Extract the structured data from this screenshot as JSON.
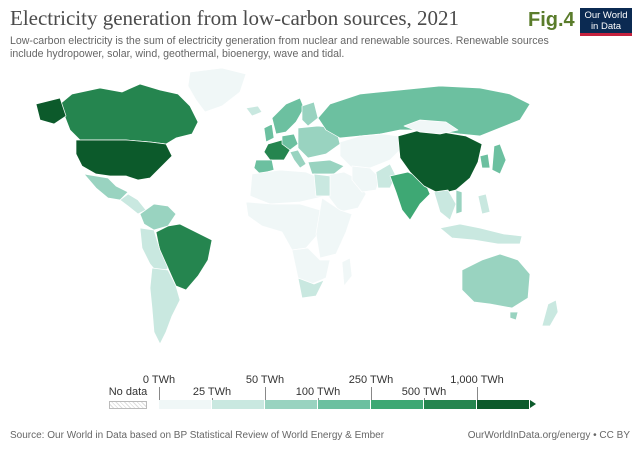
{
  "header": {
    "title": "Electricity generation from low-carbon sources, 2021",
    "subtitle": "Low-carbon electricity is the sum of electricity generation from nuclear and renewable sources. Renewable sources include hydropower, solar, wind, geothermal, bioenergy, wave and tidal.",
    "fig_label": "Fig.4",
    "logo_line1": "Our World",
    "logo_line2": "in Data"
  },
  "legend": {
    "no_data_label": "No data",
    "no_data_color": "#f5f5f5",
    "bins": [
      {
        "label": "0 TWh",
        "color": "#f0f7f7",
        "row": "top"
      },
      {
        "label": "25 TWh",
        "color": "#c9e8e0",
        "row": "bottom"
      },
      {
        "label": "50 TWh",
        "color": "#99d3c0",
        "row": "top"
      },
      {
        "label": "100 TWh",
        "color": "#6cc0a0",
        "row": "bottom"
      },
      {
        "label": "250 TWh",
        "color": "#3ea874",
        "row": "top"
      },
      {
        "label": "500 TWh",
        "color": "#25854f",
        "row": "bottom"
      },
      {
        "label": "1,000 TWh",
        "color": "#0c5a2b",
        "row": "top"
      }
    ],
    "arrow_color": "#0c5a2b"
  },
  "regions": [
    {
      "name": "Greenland",
      "color": "#f0f7f7"
    },
    {
      "name": "Canada",
      "color": "#25854f"
    },
    {
      "name": "United States",
      "color": "#0c5a2b"
    },
    {
      "name": "Mexico",
      "color": "#99d3c0"
    },
    {
      "name": "Central America",
      "color": "#c9e8e0"
    },
    {
      "name": "Colombia & Venezuela",
      "color": "#99d3c0"
    },
    {
      "name": "Brazil",
      "color": "#25854f"
    },
    {
      "name": "Peru & Bolivia",
      "color": "#c9e8e0"
    },
    {
      "name": "Argentina & Chile",
      "color": "#c9e8e0"
    },
    {
      "name": "Iceland",
      "color": "#c9e8e0"
    },
    {
      "name": "Norway & Sweden",
      "color": "#6cc0a0"
    },
    {
      "name": "Finland",
      "color": "#99d3c0"
    },
    {
      "name": "United Kingdom",
      "color": "#6cc0a0"
    },
    {
      "name": "France",
      "color": "#25854f"
    },
    {
      "name": "Spain",
      "color": "#6cc0a0"
    },
    {
      "name": "Germany",
      "color": "#6cc0a0"
    },
    {
      "name": "Italy",
      "color": "#99d3c0"
    },
    {
      "name": "Eastern Europe",
      "color": "#99d3c0"
    },
    {
      "name": "Turkey",
      "color": "#99d3c0"
    },
    {
      "name": "Russia",
      "color": "#6cc0a0"
    },
    {
      "name": "Kazakhstan & Central Asia",
      "color": "#f0f7f7"
    },
    {
      "name": "Middle East",
      "color": "#f0f7f7"
    },
    {
      "name": "Iran",
      "color": "#f0f7f7"
    },
    {
      "name": "Pakistan",
      "color": "#c9e8e0"
    },
    {
      "name": "India",
      "color": "#3ea874"
    },
    {
      "name": "China",
      "color": "#0c5a2b"
    },
    {
      "name": "Mongolia",
      "color": "#f0f7f7"
    },
    {
      "name": "Korea",
      "color": "#6cc0a0"
    },
    {
      "name": "Japan",
      "color": "#6cc0a0"
    },
    {
      "name": "Southeast Asia",
      "color": "#c9e8e0"
    },
    {
      "name": "Vietnam",
      "color": "#99d3c0"
    },
    {
      "name": "Indonesia",
      "color": "#c9e8e0"
    },
    {
      "name": "Philippines",
      "color": "#c9e8e0"
    },
    {
      "name": "North Africa",
      "color": "#f0f7f7"
    },
    {
      "name": "Egypt",
      "color": "#c9e8e0"
    },
    {
      "name": "West & Central Africa",
      "color": "#f0f7f7"
    },
    {
      "name": "East Africa",
      "color": "#f0f7f7"
    },
    {
      "name": "Southern Africa",
      "color": "#f0f7f7"
    },
    {
      "name": "South Africa",
      "color": "#c9e8e0"
    },
    {
      "name": "Madagascar",
      "color": "#f0f7f7"
    },
    {
      "name": "Australia",
      "color": "#99d3c0"
    },
    {
      "name": "New Zealand",
      "color": "#c9e8e0"
    }
  ],
  "footer": {
    "source": "Source: Our World in Data based on BP Statistical Review of World Energy & Ember",
    "credit": "OurWorldInData.org/energy • CC BY"
  }
}
